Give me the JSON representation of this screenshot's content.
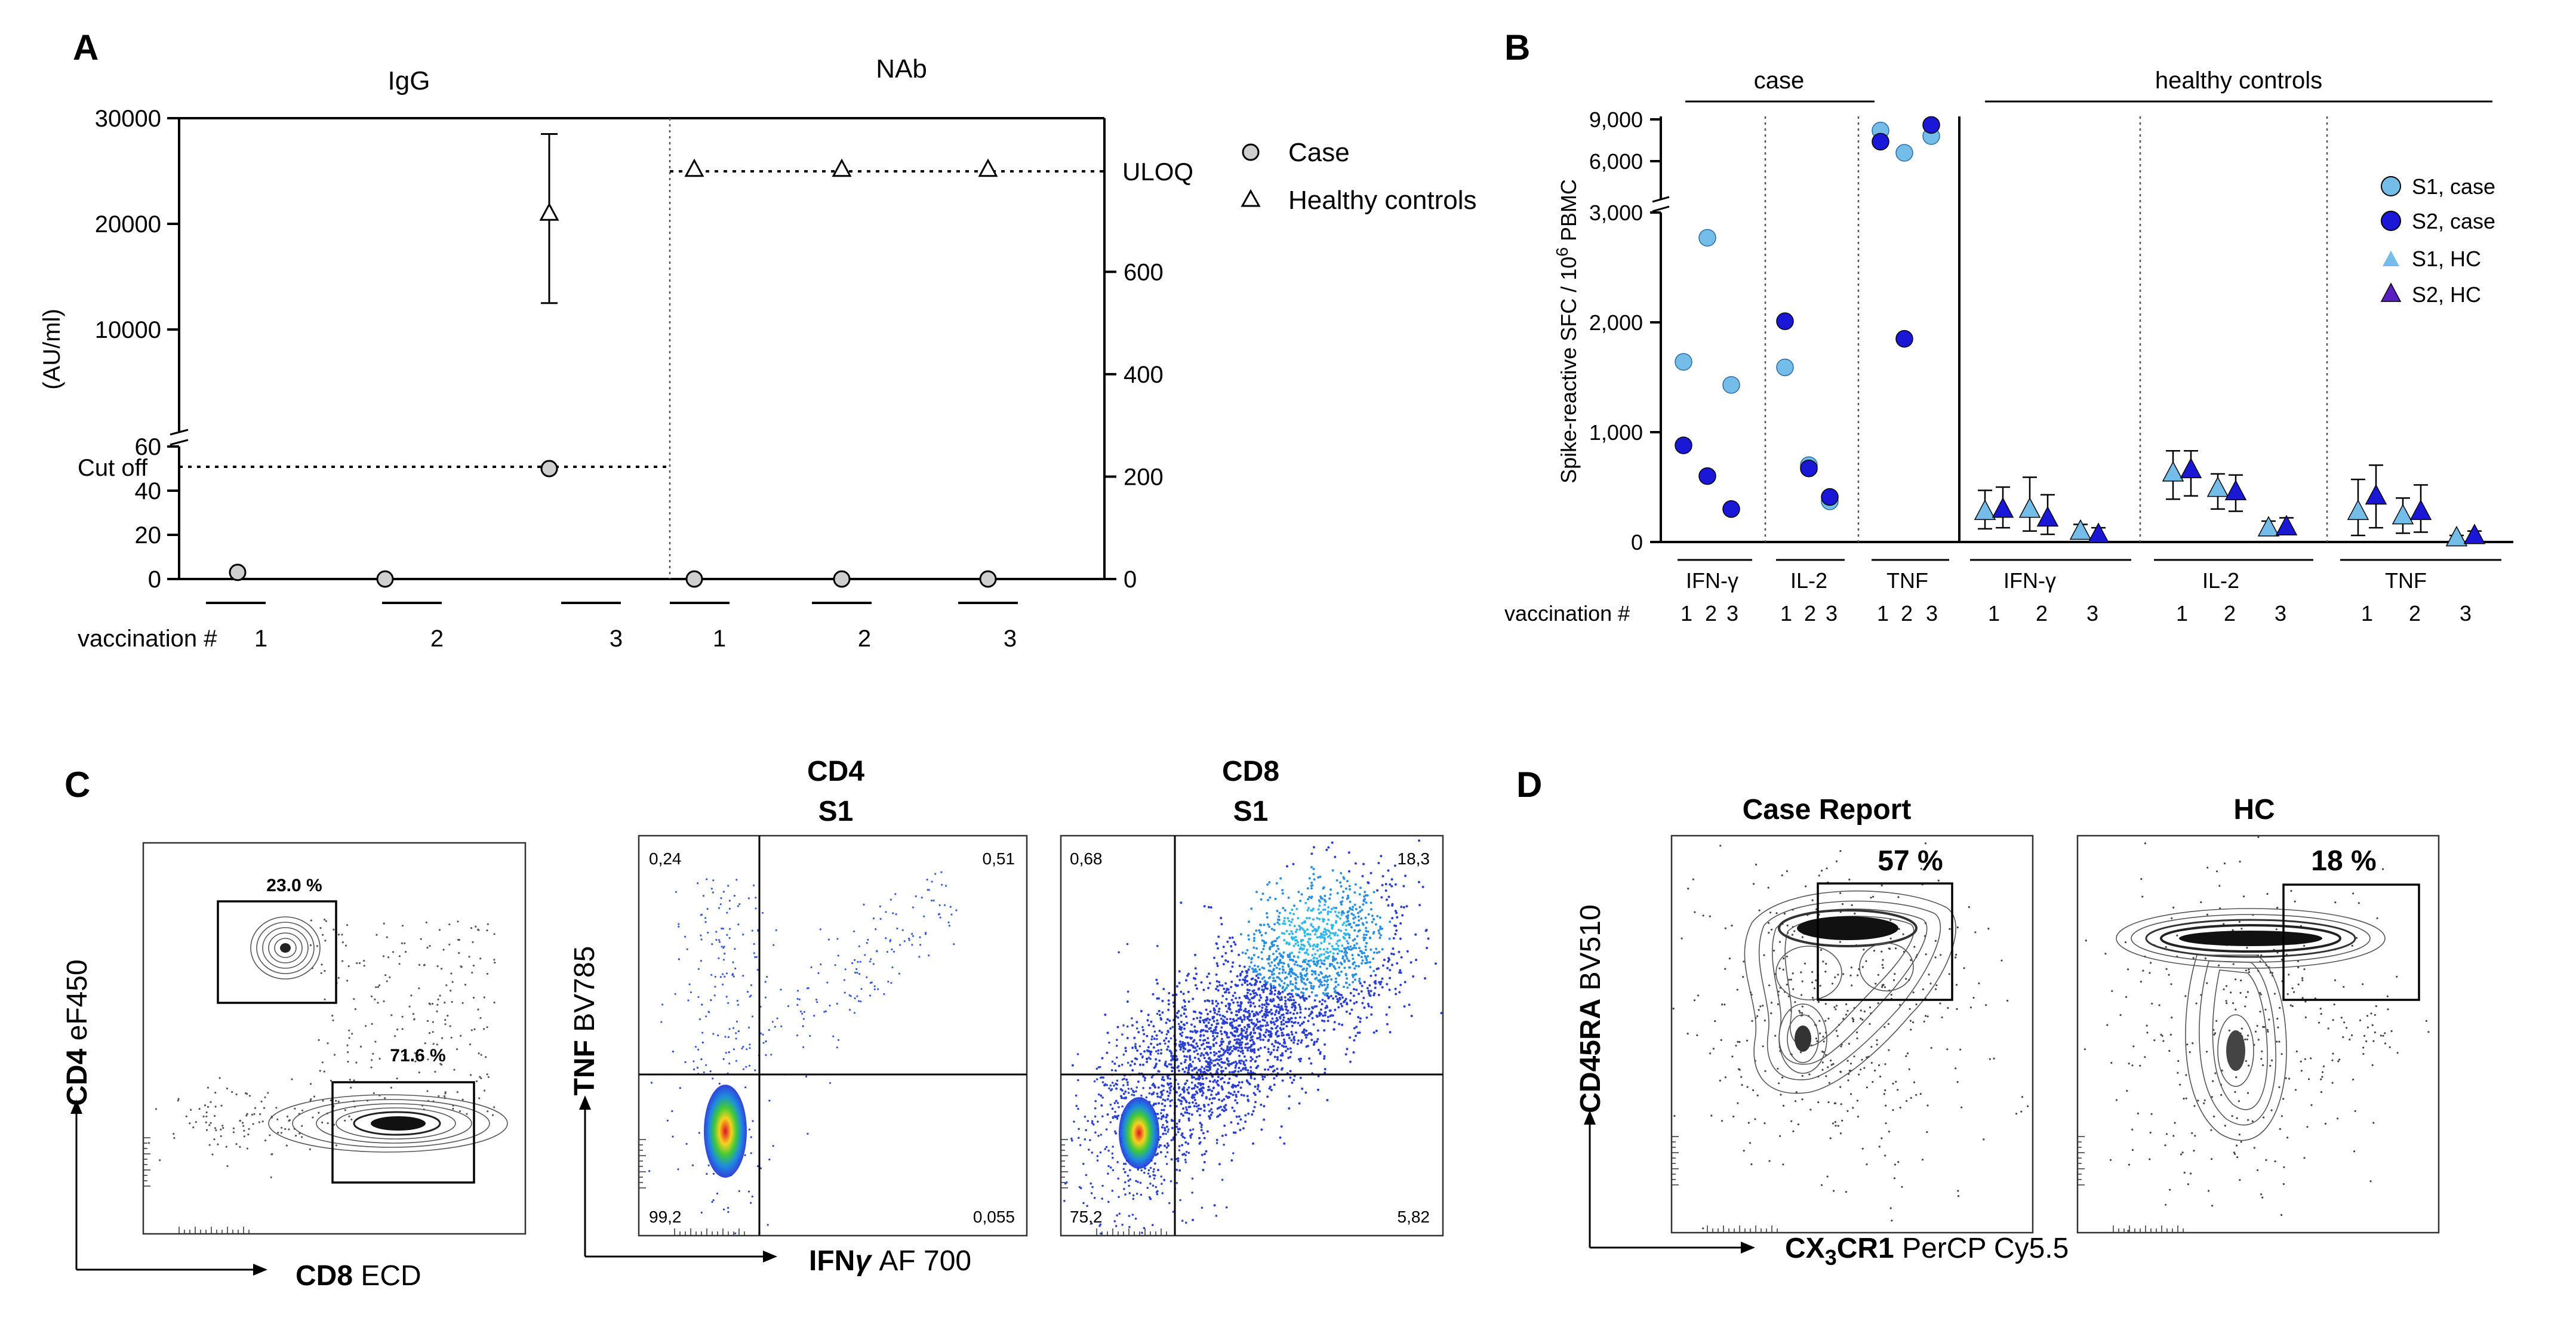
{
  "panels": {
    "A": "A",
    "B": "B",
    "C": "C",
    "D": "D"
  },
  "chart_data": [
    {
      "type": "scatter",
      "panel": "A",
      "subplots": [
        "IgG",
        "NAb"
      ],
      "ylabel": "(AU/ml)",
      "left_axis_upper_ticks": [
        "30000",
        "20000",
        "10000"
      ],
      "left_axis_lower_ticks": [
        "60",
        "40",
        "20",
        "0"
      ],
      "left_ylim_upper": [
        0,
        30000
      ],
      "left_ylim_lower": [
        0,
        60
      ],
      "right_axis_ticks": [
        "600",
        "400",
        "200",
        "0"
      ],
      "right_ylim": [
        0,
        900
      ],
      "cutoff": {
        "label": "Cut off",
        "value": 50
      },
      "uloq": {
        "label": "ULOQ",
        "value": 800
      },
      "xlabel": "vaccination #",
      "categories": [
        "1",
        "2",
        "3",
        "1",
        "2",
        "3"
      ],
      "legend": [
        "Case",
        "Healthy controls"
      ],
      "series": [
        {
          "name": "Case",
          "subplot": "IgG",
          "values": [
            3,
            0,
            50
          ]
        },
        {
          "name": "Healthy controls",
          "subplot": "IgG",
          "values": [
            null,
            null,
            21000
          ],
          "error": [
            null,
            null,
            [
              12500,
              28500
            ]
          ]
        },
        {
          "name": "Case",
          "subplot": "NAb",
          "values": [
            0,
            0,
            0
          ]
        },
        {
          "name": "Healthy controls",
          "subplot": "NAb",
          "values": [
            800,
            800,
            800
          ]
        }
      ]
    },
    {
      "type": "scatter",
      "panel": "B",
      "ylabel": "Spike-reactive SFC / 10",
      "ylabel_sup": "6",
      "ylabel_tail": " PBMC",
      "y_ticks_lower": [
        "0",
        "1,000",
        "2,000",
        "3,000"
      ],
      "y_ticks_upper": [
        "6,000",
        "9,000"
      ],
      "ylim_lower": [
        0,
        3000
      ],
      "ylim_upper": [
        3000,
        9000
      ],
      "group_titles": [
        "case",
        "healthy controls"
      ],
      "cytokines": [
        "IFN-γ",
        "IL-2",
        "TNF",
        "IFN-γ",
        "IL-2",
        "TNF"
      ],
      "xlabel": "vaccination #",
      "case_ticks": [
        "1",
        "2",
        "3"
      ],
      "hc_ticks": [
        "1",
        "2",
        "3"
      ],
      "legend": [
        "S1, case",
        "S2, case",
        "S1, HC",
        "S2, HC"
      ],
      "colors": {
        "S1": "#74BDE8",
        "S2": "#1A18D6",
        "HC_S2": "#5A1FC2"
      },
      "case": {
        "IFN-γ": {
          "S1": [
            1640,
            2770,
            1430
          ],
          "S2": [
            880,
            600,
            300
          ]
        },
        "IL-2": {
          "S1": [
            1590,
            700,
            370
          ],
          "S2": [
            2010,
            670,
            410
          ]
        },
        "TNF": {
          "S1": [
            8200,
            6600,
            7800
          ],
          "S2": [
            7400,
            1850,
            8600
          ]
        }
      },
      "healthy_controls": {
        "IFN-γ": {
          "S1": [
            270,
            290,
            90
          ],
          "S2": [
            290,
            210,
            60
          ],
          "S1_err": [
            [
              120,
              470
            ],
            [
              100,
              590
            ],
            [
              40,
              160
            ]
          ],
          "S2_err": [
            [
              130,
              500
            ],
            [
              70,
              430
            ],
            [
              20,
              130
            ]
          ]
        },
        "IL-2": {
          "S1": [
            620,
            480,
            120
          ],
          "S2": [
            650,
            450,
            130
          ],
          "S1_err": [
            [
              390,
              830
            ],
            [
              300,
              620
            ],
            [
              70,
              190
            ]
          ],
          "S2_err": [
            [
              420,
              830
            ],
            [
              280,
              610
            ],
            [
              70,
              220
            ]
          ]
        },
        "TNF": {
          "S1": [
            270,
            230,
            30
          ],
          "S2": [
            410,
            270,
            50
          ],
          "S1_err": [
            [
              60,
              570
            ],
            [
              80,
              400
            ],
            [
              10,
              60
            ]
          ],
          "S2_err": [
            [
              130,
              700
            ],
            [
              90,
              520
            ],
            [
              20,
              100
            ]
          ]
        }
      }
    }
  ],
  "panelC": {
    "plot1": {
      "gate_upper": "23.0 %",
      "gate_lower": "71.6 %",
      "y_marker": "CD4",
      "y_channel": " eF450",
      "x_marker": "CD8",
      "x_channel": " ECD"
    },
    "plot2": {
      "title_line1": "CD4",
      "title_line2": "S1",
      "q_ul": "0,24",
      "q_ur": "0,51",
      "q_ll": "99,2",
      "q_lr": "0,055"
    },
    "plot3": {
      "title_line1": "CD8",
      "title_line2": "S1",
      "q_ul": "0,68",
      "q_ur": "18,3",
      "q_ll": "75,2",
      "q_lr": "5,82"
    },
    "y_marker": "TNF",
    "y_channel": " BV785",
    "x_marker": "IFN",
    "x_marker_greek": "γ",
    "x_channel": " AF 700"
  },
  "panelD": {
    "plot1": {
      "title": "Case Report",
      "gate": "57 %"
    },
    "plot2": {
      "title": "HC",
      "gate": "18 %"
    },
    "y_marker": "CD45RA",
    "y_channel": " BV510",
    "x_marker": "CX",
    "x_marker_sub": "3",
    "x_marker_tail": "CR1",
    "x_channel": " PerCP Cy5.5"
  }
}
